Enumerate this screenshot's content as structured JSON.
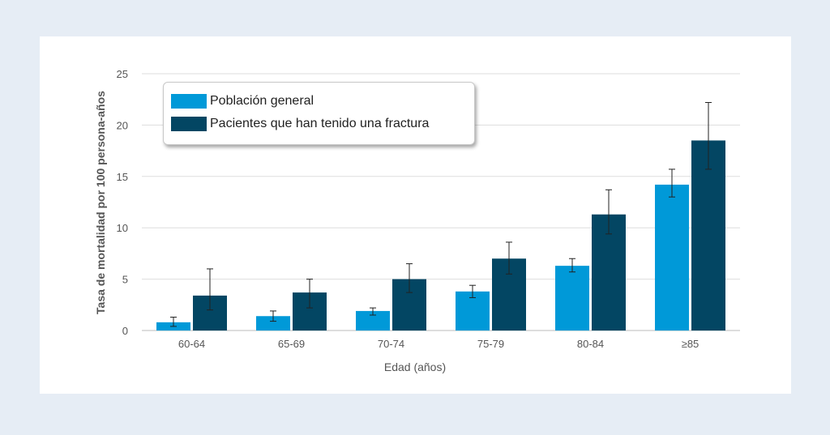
{
  "colors": {
    "general": "#0099d8",
    "fracture": "#034663",
    "grid": "#dddddd",
    "error": "#222222"
  },
  "chart_data": {
    "type": "bar",
    "xlabel": "Edad (años)",
    "ylabel": "Tasa de mortalidad por 100 persona-años",
    "ylim": [
      0,
      25
    ],
    "yticks": [
      0,
      5,
      10,
      15,
      20,
      25
    ],
    "grid": true,
    "legend_position": "top-left",
    "categories": [
      "60-64",
      "65-69",
      "70-74",
      "75-79",
      "80-84",
      "≥85"
    ],
    "series": [
      {
        "name": "Población general",
        "color": "#0099d8",
        "values": [
          0.8,
          1.4,
          1.9,
          3.8,
          6.3,
          14.2
        ],
        "error_low": [
          0.4,
          0.9,
          1.5,
          3.2,
          5.7,
          13.0
        ],
        "error_high": [
          1.3,
          1.9,
          2.2,
          4.4,
          7.0,
          15.7
        ]
      },
      {
        "name": "Pacientes que han tenido una fractura",
        "color": "#034663",
        "values": [
          3.4,
          3.7,
          5.0,
          7.0,
          11.3,
          18.5
        ],
        "error_low": [
          2.0,
          2.2,
          3.7,
          5.5,
          9.4,
          15.7
        ],
        "error_high": [
          6.0,
          5.0,
          6.5,
          8.6,
          13.7,
          22.2
        ]
      }
    ]
  }
}
